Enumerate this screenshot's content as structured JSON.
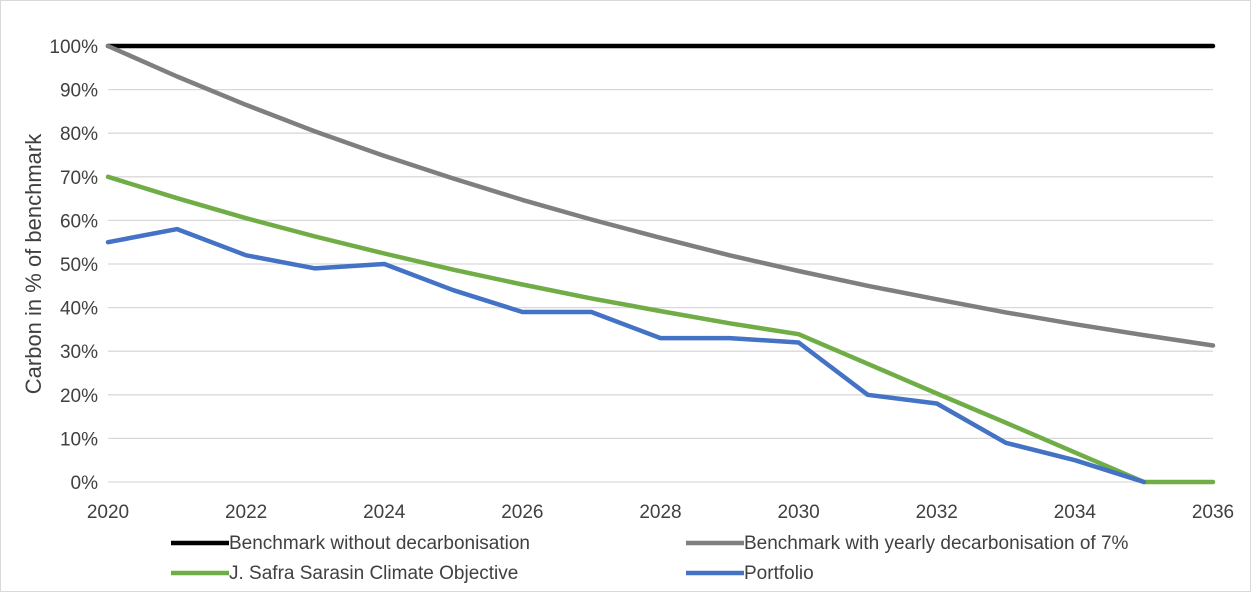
{
  "chart_data": {
    "type": "line",
    "title": "",
    "xlabel": "",
    "ylabel": "Carbon in % of benchmark",
    "xlim": [
      2020,
      2036
    ],
    "ylim": [
      0,
      100
    ],
    "x_ticks": [
      "2020",
      "2022",
      "2024",
      "2026",
      "2028",
      "2030",
      "2032",
      "2034",
      "2036"
    ],
    "y_ticks": [
      "0%",
      "10%",
      "20%",
      "30%",
      "40%",
      "50%",
      "60%",
      "70%",
      "80%",
      "90%",
      "100%"
    ],
    "grid": "horizontal",
    "legend_position": "bottom",
    "x": [
      2020,
      2021,
      2022,
      2023,
      2024,
      2025,
      2026,
      2027,
      2028,
      2029,
      2030,
      2031,
      2032,
      2033,
      2034,
      2035,
      2036
    ],
    "series": [
      {
        "name": "Benchmark without decarbonisation",
        "color": "#000000",
        "values": [
          100,
          100,
          100,
          100,
          100,
          100,
          100,
          100,
          100,
          100,
          100,
          100,
          100,
          100,
          100,
          100,
          100
        ]
      },
      {
        "name": "Benchmark with yearly decarbonisation of 7%",
        "color": "#7f7f7f",
        "values": [
          100,
          93,
          86.5,
          80.4,
          74.8,
          69.6,
          64.7,
          60.2,
          56,
          52,
          48.4,
          45,
          41.9,
          38.9,
          36.2,
          33.7,
          31.3
        ]
      },
      {
        "name": "J. Safra Sarasin Climate Objective",
        "color": "#70ad47",
        "values": [
          70,
          65.1,
          60.5,
          56.3,
          52.4,
          48.7,
          45.3,
          42.1,
          39.2,
          36.4,
          33.9,
          27.1,
          20.3,
          13.6,
          6.8,
          0,
          0
        ]
      },
      {
        "name": "Portfolio",
        "color": "#4472c4",
        "values": [
          55,
          58,
          52,
          49,
          50,
          44,
          39,
          39,
          33,
          33,
          32,
          20,
          18,
          9,
          5,
          0,
          null
        ]
      }
    ]
  }
}
